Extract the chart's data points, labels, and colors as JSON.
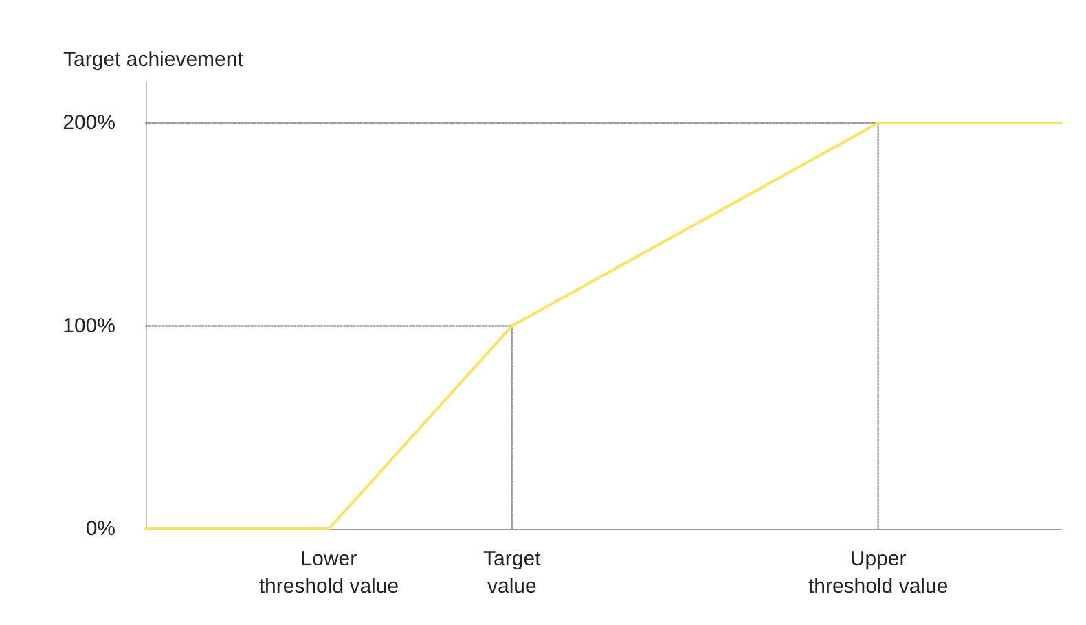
{
  "chart_data": {
    "type": "line",
    "ylabel": "Target achievement",
    "categories": [
      null,
      "Lower\nthreshold value",
      "Target\nvalue",
      null,
      "Upper\nthreshold value",
      null
    ],
    "ylim": [
      0,
      220
    ],
    "yticks": [
      {
        "value": 0,
        "label": "0%"
      },
      {
        "value": 100,
        "label": "100%"
      },
      {
        "value": 200,
        "label": "200%"
      }
    ],
    "series": [
      {
        "values": [
          100,
          100,
          100,
          null,
          null,
          null
        ],
        "color": "#999999",
        "line_style": "dotted"
      },
      {
        "values": [
          200,
          200,
          200,
          200,
          200,
          null
        ],
        "color": "#999999",
        "line_style": "dotted"
      },
      {
        "x": [
          "Target\nvalue",
          "Target\nvalue"
        ],
        "values": [
          100,
          0
        ],
        "color": "#999999",
        "line_style": "dotted"
      },
      {
        "x": [
          "Upper\nthreshold value",
          "Upper\nthreshold value"
        ],
        "values": [
          200,
          0
        ],
        "color": "#999999",
        "line_style": "dotted"
      },
      {
        "values": [
          0,
          0,
          100,
          150,
          200,
          200
        ],
        "color": "#f7e463",
        "line_style": "solid"
      }
    ],
    "grid": false,
    "marker": "none"
  }
}
